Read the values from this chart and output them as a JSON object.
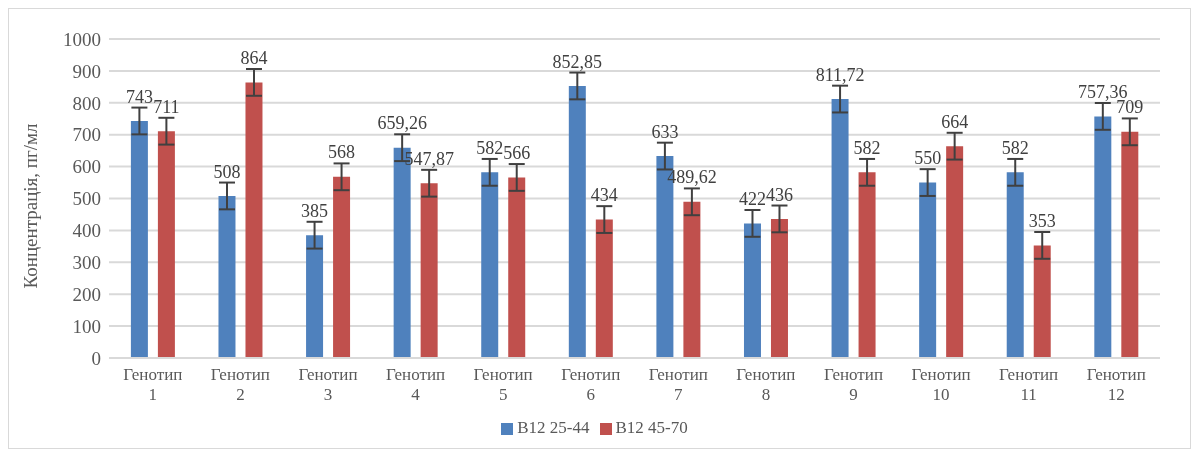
{
  "chart_data": {
    "type": "bar",
    "ylabel": "Концентрація, пг/мл",
    "categories": [
      "Генотип 1",
      "Генотип 2",
      "Генотип 3",
      "Генотип 4",
      "Генотип 5",
      "Генотип 6",
      "Генотип 7",
      "Генотип 8",
      "Генотип 9",
      "Генотип 10",
      "Генотип 11",
      "Генотип 12"
    ],
    "series": [
      {
        "name": "B12 25-44",
        "color": "#4f81bd",
        "values": [
          743,
          508,
          385,
          659.26,
          582,
          852.85,
          633,
          422,
          811.72,
          550,
          582,
          757.36
        ],
        "errors": [
          42,
          42,
          42,
          42,
          42,
          42,
          42,
          42,
          42,
          42,
          42,
          42
        ],
        "value_labels": [
          "743",
          "508",
          "385",
          "659,26",
          "582",
          "852,85",
          "633",
          "422",
          "811,72",
          "550",
          "582",
          "757,36"
        ]
      },
      {
        "name": "B12 45-70",
        "color": "#c0504d",
        "values": [
          711,
          864,
          568,
          547.87,
          566,
          434,
          489.62,
          436,
          582,
          664,
          353,
          709
        ],
        "errors": [
          42,
          42,
          42,
          42,
          42,
          42,
          42,
          42,
          42,
          42,
          42,
          42
        ],
        "value_labels": [
          "711",
          "864",
          "568",
          "547,87",
          "566",
          "434",
          "489,62",
          "436",
          "582",
          "664",
          "353",
          "709"
        ]
      }
    ],
    "ylim": [
      0,
      1000
    ],
    "yticks": [
      0,
      100,
      200,
      300,
      400,
      500,
      600,
      700,
      800,
      900,
      1000
    ],
    "grid": "y",
    "legend": "bottom"
  }
}
